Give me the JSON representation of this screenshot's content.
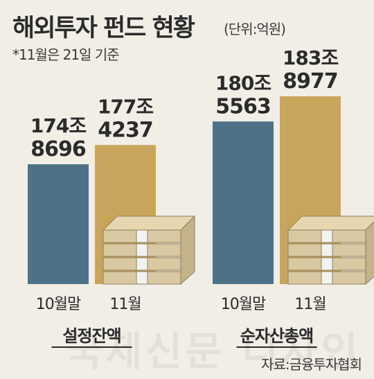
{
  "header": {
    "title": "해외투자 펀드 현황",
    "unit": "(단위:억원)",
    "note": "*11월은 21일 기준"
  },
  "footer": {
    "source": "자료:금융투자협회",
    "watermark": "국제신문 디자인"
  },
  "colors": {
    "oct": "#4d7288",
    "nov": "#c9a55b"
  },
  "chart_data": [
    {
      "type": "bar",
      "group_label": "설정잔액",
      "categories": [
        "10월말",
        "11월"
      ],
      "values": [
        1748696,
        1774237
      ],
      "value_labels": [
        [
          "174조",
          "8696"
        ],
        [
          "177조",
          "4237"
        ]
      ]
    },
    {
      "type": "bar",
      "group_label": "순자산총액",
      "categories": [
        "10월말",
        "11월"
      ],
      "values": [
        1805563,
        1838977
      ],
      "value_labels": [
        [
          "180조",
          "5563"
        ],
        [
          "183조",
          "8977"
        ]
      ]
    }
  ]
}
